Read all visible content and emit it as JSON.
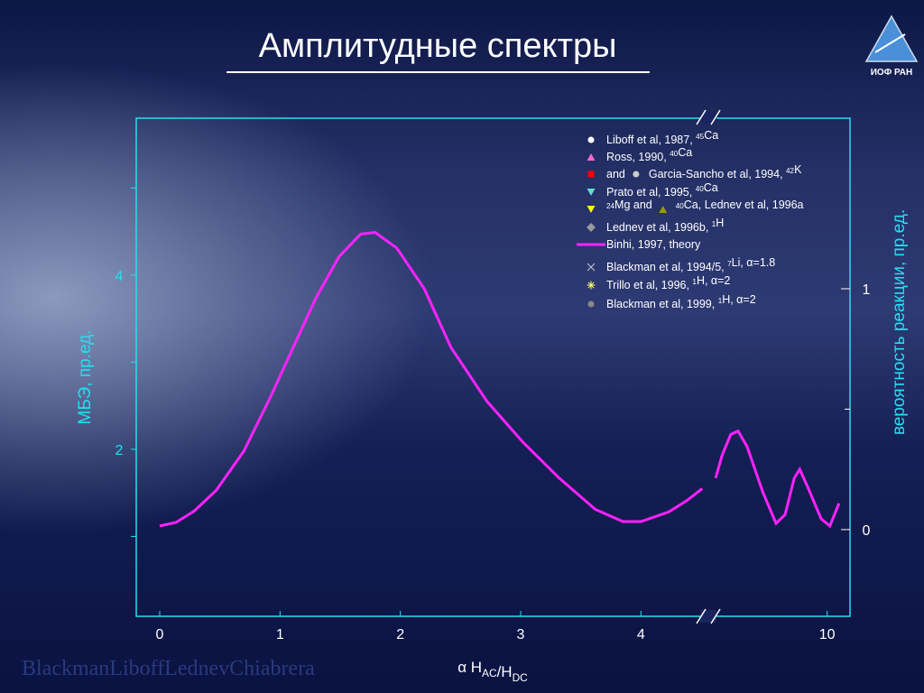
{
  "title": "Амплитудные спектры",
  "logo": "ИОФ РАН",
  "footer": "BlackmanLiboffLednevChiabrera",
  "chart_data": {
    "type": "line",
    "y_label": "МБЭ, пр.ед.",
    "y2_label": "вероятность реакции, пр.ед.",
    "x_label": [
      {
        "t": "α H"
      },
      {
        "sub": "AC"
      },
      {
        "t": "/H"
      },
      {
        "sub": "DC"
      }
    ],
    "ylim": [
      0.083,
      5.8
    ],
    "yticks": [
      2,
      4
    ],
    "yminorticks": [
      1,
      3,
      5
    ],
    "y2lim": [
      -0.36,
      1.708
    ],
    "y2ticks": [
      0,
      1
    ],
    "y2minorticks": [
      0.5
    ],
    "x_segments": [
      {
        "xlim": [
          -0.195,
          4.56
        ],
        "xticks": [
          0,
          1,
          2,
          3,
          4
        ]
      },
      {
        "xlim": [
          7.4,
          10.5
        ],
        "xticks": [
          10
        ]
      }
    ],
    "series": [
      {
        "color": "#ff22ff",
        "segment": 0,
        "x": [
          0,
          0.135,
          0.285,
          0.47,
          0.7,
          0.92,
          1.11,
          1.3,
          1.49,
          1.67,
          1.79,
          1.97,
          2.2,
          2.42,
          2.72,
          3.02,
          3.32,
          3.62,
          3.85,
          4.0,
          4.23,
          4.38,
          4.51
        ],
        "values": [
          1.12,
          1.16,
          1.29,
          1.53,
          1.98,
          2.6,
          3.17,
          3.74,
          4.21,
          4.47,
          4.49,
          4.31,
          3.84,
          3.17,
          2.55,
          2.08,
          1.67,
          1.31,
          1.17,
          1.17,
          1.28,
          1.41,
          1.55
        ]
      },
      {
        "color": "#ff22ff",
        "segment": 1,
        "x": [
          7.56,
          7.7,
          7.89,
          8.05,
          8.25,
          8.59,
          8.88,
          9.08,
          9.28,
          9.4,
          9.58,
          9.87,
          10.06,
          10.26
        ],
        "values": [
          1.67,
          1.93,
          2.17,
          2.21,
          2.03,
          1.51,
          1.15,
          1.25,
          1.67,
          1.77,
          1.56,
          1.2,
          1.12,
          1.38
        ]
      }
    ],
    "legend": [
      {
        "marker": "circle",
        "color": "#ffffff",
        "text": [
          "Liboff et al, 1987, ",
          {
            "sup": "45"
          },
          "Ca"
        ]
      },
      {
        "marker": "triangle",
        "color": "#ff66cc",
        "text": [
          "Ross, 1990, ",
          {
            "sup": "40"
          },
          "Ca"
        ]
      },
      {
        "marker": "square",
        "color": "#ff0000",
        "text": [
          "and"
        ],
        "mid_marker": "circle",
        "mid_color": "#cccccc",
        "text2": [
          "Garcia-Sancho et al, 1994, ",
          {
            "sup": "42"
          },
          "K"
        ]
      },
      {
        "marker": "triangle-down",
        "color": "#66ddcc",
        "text": [
          "Prato et al, 1995, ",
          {
            "sup": "40"
          },
          "Ca"
        ]
      },
      {
        "marker": "triangle-down",
        "color": "#ffff00",
        "text": [
          {
            "sup": "24"
          },
          "Mg and"
        ],
        "mid_marker": "triangle",
        "mid_color": "#999900",
        "text2": [
          {
            "sup": "40"
          },
          "Ca, Lednev et al, 1996a"
        ]
      },
      {
        "marker": "diamond",
        "color": "#999999",
        "text": [
          "Lednev et al, 1996b, ",
          {
            "sup": "1"
          },
          "H"
        ]
      },
      {
        "marker": "line",
        "color": "#ff22ff",
        "text": [
          "Binhi, 1997, theory"
        ]
      },
      {
        "marker": "x",
        "color": "#cccccc",
        "text": [
          "Blackman et al, 1994/5, ",
          {
            "sup": "7"
          },
          "Li, α=1.8"
        ]
      },
      {
        "marker": "asterisk",
        "color": "#ffff66",
        "text": [
          "Trillo et al, 1996, ",
          {
            "sup": "1"
          },
          "H,  α=2"
        ]
      },
      {
        "marker": "circle",
        "color": "#888888",
        "text": [
          "Blackman et al, 1999, ",
          {
            "sup": "1"
          },
          "H,  α=2"
        ]
      }
    ]
  }
}
